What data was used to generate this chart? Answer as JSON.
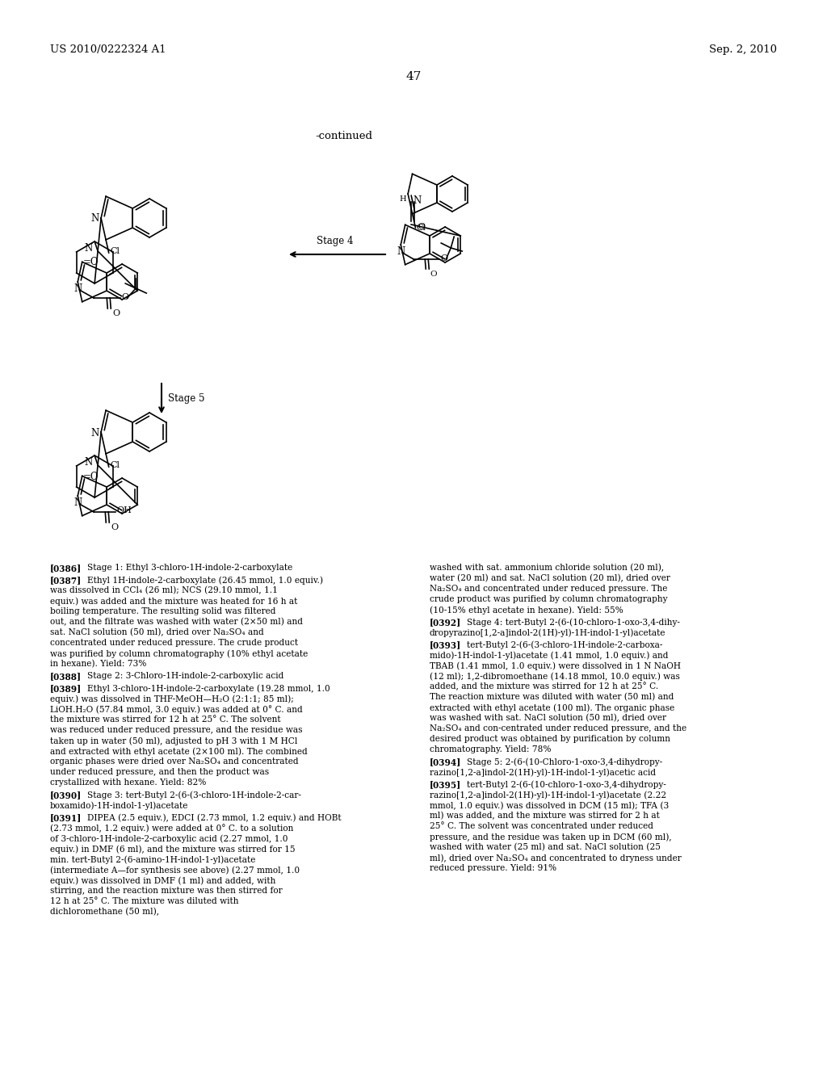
{
  "background_color": "#ffffff",
  "header_left": "US 2010/0222324 A1",
  "header_right": "Sep. 2, 2010",
  "page_number": "47",
  "continued_label": "-continued",
  "stage4_label": "Stage 4",
  "stage5_label": "Stage 5",
  "left_col_text": [
    {
      "tag": "[0386]",
      "bold_tag": true,
      "text": " Stage 1: Ethyl 3-chloro-1H-indole-2-carboxylate"
    },
    {
      "tag": "[0387]",
      "bold_tag": true,
      "text": " Ethyl 1H-indole-2-carboxylate (26.45 mmol, 1.0 equiv.) was dissolved in CCl₄ (26 ml); NCS (29.10 mmol, 1.1 equiv.) was added and the mixture was heated for 16 h at boiling temperature. The resulting solid was filtered out, and the filtrate was washed with water (2×50 ml) and sat. NaCl solution (50 ml), dried over Na₂SO₄ and concentrated under reduced pressure. The crude product was purified by column chromatography (10% ethyl acetate in hexane). Yield: 73%"
    },
    {
      "tag": "[0388]",
      "bold_tag": true,
      "text": " Stage 2: 3-Chloro-1H-indole-2-carboxylic acid"
    },
    {
      "tag": "[0389]",
      "bold_tag": true,
      "text": " Ethyl 3-chloro-1H-indole-2-carboxylate (19.28 mmol, 1.0 equiv.) was dissolved in THF-MeOH—H₂O (2:1:1; 85 ml); LiOH.H₂O (57.84 mmol, 3.0 equiv.) was added at 0° C. and the mixture was stirred for 12 h at 25° C. The solvent was reduced under reduced pressure, and the residue was taken up in water (50 ml), adjusted to pH 3 with 1 M HCl and extracted with ethyl acetate (2×100 ml). The combined organic phases were dried over Na₂SO₄ and concentrated under reduced pressure, and then the product was crystallized with hexane. Yield: 82%"
    },
    {
      "tag": "[0390]",
      "bold_tag": true,
      "text": " Stage 3: tert-Butyl 2-(6-(3-chloro-1H-indole-2-car-\nboxamido)-1H-indol-1-yl)acetate"
    },
    {
      "tag": "[0391]",
      "bold_tag": true,
      "text": " DIPEA (2.5 equiv.), EDCI (2.73 mmol, 1.2 equiv.) and HOBt (2.73 mmol, 1.2 equiv.) were added at 0° C. to a solution of 3-chloro-1H-indole-2-carboxylic acid (2.27 mmol, 1.0 equiv.) in DMF (6 ml), and the mixture was stirred for 15 min. tert-Butyl 2-(6-amino-1H-indol-1-yl)acetate (intermediate A—for synthesis see above) (2.27 mmol, 1.0 equiv.) was dissolved in DMF (1 ml) and added, with stirring, and the reaction mixture was then stirred for 12 h at 25° C. The mixture was diluted with dichloromethane (50 ml),"
    }
  ],
  "right_col_text": [
    {
      "tag": "",
      "bold_tag": false,
      "text": "washed with sat. ammonium chloride solution (20 ml), water (20 ml) and sat. NaCl solution (20 ml), dried over Na₂SO₄ and concentrated under reduced pressure. The crude product was purified by column chromatography (10-15% ethyl acetate in hexane). Yield: 55%"
    },
    {
      "tag": "[0392]",
      "bold_tag": true,
      "text": " Stage 4: tert-Butyl 2-(6-(10-chloro-1-oxo-3,4-dihy-\ndropyrazino[1,2-a]indol-2(1H)-yl)-1H-indol-1-yl)acetate"
    },
    {
      "tag": "[0393]",
      "bold_tag": true,
      "text": " tert-Butyl  2-(6-(3-chloro-1H-indole-2-carboxa-\nmido)-1H-indol-1-yl)acetate (1.41 mmol, 1.0 equiv.) and TBAB (1.41 mmol, 1.0 equiv.) were dissolved in 1 N NaOH (12 ml); 1,2-dibromoethane (14.18 mmol, 10.0 equiv.) was added, and the mixture was stirred for 12 h at 25° C. The reaction mixture was diluted with water (50 ml) and extracted with ethyl acetate (100 ml). The organic phase was washed with sat. NaCl solution (50 ml), dried over Na₂SO₄ and con-centrated under reduced pressure, and the desired product was obtained by purification by column chromatography. Yield: 78%"
    },
    {
      "tag": "[0394]",
      "bold_tag": true,
      "text": " Stage 5:  2-(6-(10-Chloro-1-oxo-3,4-dihydropy-\nrazino[1,2-a]indol-2(1H)-yl)-1H-indol-1-yl)acetic acid"
    },
    {
      "tag": "[0395]",
      "bold_tag": true,
      "text": " tert-Butyl  2-(6-(10-chloro-1-oxo-3,4-dihydropy-\nrazino[1,2-a]indol-2(1H)-yl)-1H-indol-1-yl)acetate  (2.22 mmol, 1.0 equiv.) was dissolved in DCM (15 ml); TFA (3 ml) was added, and the mixture was stirred for 2 h at 25° C. The solvent was concentrated under reduced pressure, and the residue was taken up in DCM (60 ml), washed with water (25 ml) and sat. NaCl solution (25 ml), dried over Na₂SO₄ and concentrated to dryness under reduced pressure. Yield: 91%"
    }
  ]
}
